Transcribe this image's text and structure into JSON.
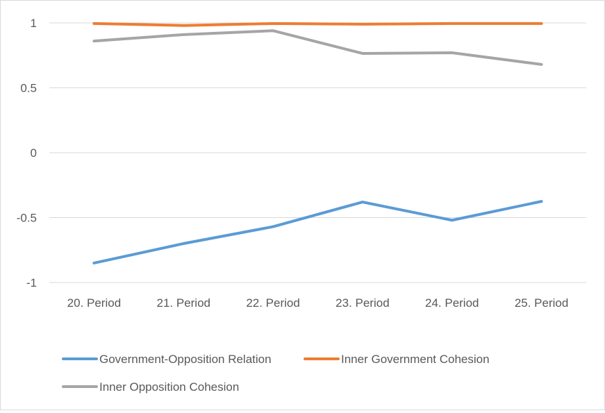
{
  "chart_data": {
    "type": "line",
    "title": "",
    "xlabel": "",
    "ylabel": "",
    "categories": [
      "20. Period",
      "21. Period",
      "22. Period",
      "23. Period",
      "24. Period",
      "25. Period"
    ],
    "ylim": [
      -1,
      1
    ],
    "yticks": [
      1,
      0.5,
      0,
      -0.5,
      -1
    ],
    "ytick_labels": [
      "1",
      "0.5",
      "0",
      "-0.5",
      "-1"
    ],
    "grid": true,
    "legend_position": "bottom",
    "series": [
      {
        "name": "Government-Opposition Relation",
        "color": "#5b9bd5",
        "values": [
          -0.85,
          -0.7,
          -0.57,
          -0.38,
          -0.52,
          -0.375
        ]
      },
      {
        "name": "Inner Government Cohesion",
        "color": "#ed7d31",
        "values": [
          0.995,
          0.98,
          0.995,
          0.99,
          0.995,
          0.995
        ]
      },
      {
        "name": "Inner Opposition Cohesion",
        "color": "#a5a5a5",
        "values": [
          0.86,
          0.91,
          0.94,
          0.765,
          0.77,
          0.68
        ]
      }
    ]
  }
}
